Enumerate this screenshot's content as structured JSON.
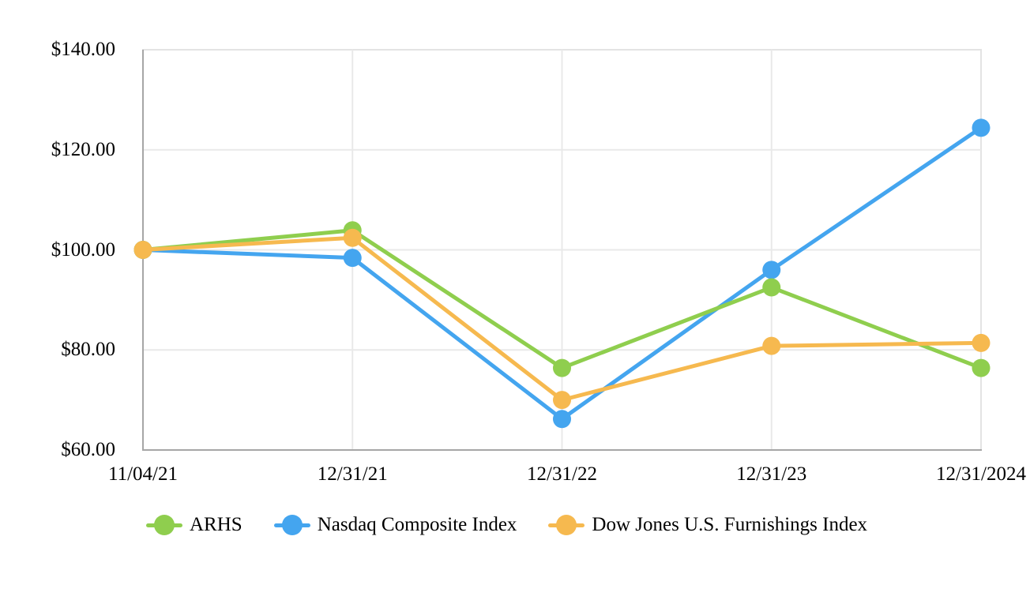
{
  "chart_data": {
    "type": "line",
    "title": "",
    "x_categories": [
      "11/04/21",
      "12/31/21",
      "12/31/22",
      "12/31/23",
      "12/31/2024"
    ],
    "y_tick_labels": [
      "$140.00",
      "$120.00",
      "$100.00",
      "$80.00",
      "$60.00"
    ],
    "y_tick_values": [
      140,
      120,
      100,
      80,
      60
    ],
    "ylim": [
      60,
      140
    ],
    "grid": true,
    "legend_position": "bottom",
    "series": [
      {
        "name": "ARHS",
        "color": "#8FCE4E",
        "values": [
          100.0,
          103.9,
          76.4,
          92.5,
          76.4
        ]
      },
      {
        "name": "Nasdaq Composite Index",
        "color": "#44A5EF",
        "values": [
          100.0,
          98.4,
          66.2,
          96.0,
          124.4
        ]
      },
      {
        "name": "Dow Jones U.S. Furnishings Index",
        "color": "#F6B94F",
        "values": [
          100.0,
          102.4,
          70.0,
          80.8,
          81.4
        ]
      }
    ],
    "render_order": [
      1,
      0,
      2
    ],
    "colors": {
      "axis": "#a6a6a6",
      "gridline": "#e9e9e9",
      "plot_border": "#e3e3e3",
      "background": "#ffffff"
    }
  }
}
